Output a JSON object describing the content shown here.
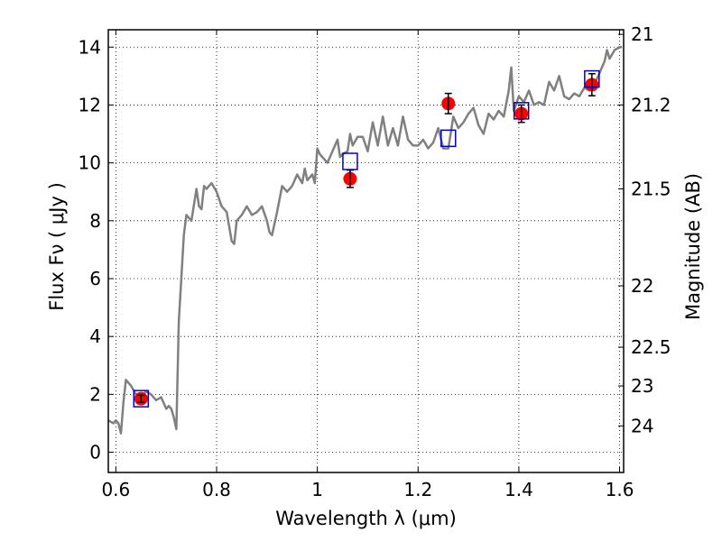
{
  "chart_data": {
    "type": "scatter",
    "xlabel": "Wavelength  λ (μm)",
    "ylabel": "Flux  Fν  ( μJy )",
    "y2label": "Magnitude (AB)",
    "xlim": [
      0.585,
      1.608
    ],
    "ylim": [
      -0.7,
      14.6
    ],
    "grid": true,
    "x_ticks": [
      {
        "value": 0.6,
        "label": "0.6"
      },
      {
        "value": 0.8,
        "label": "0.8"
      },
      {
        "value": 1.0,
        "label": "1"
      },
      {
        "value": 1.2,
        "label": "1.2"
      },
      {
        "value": 1.4,
        "label": "1.4"
      },
      {
        "value": 1.6,
        "label": "1.6"
      }
    ],
    "y_ticks": [
      {
        "value": 0,
        "label": "0"
      },
      {
        "value": 2,
        "label": "2"
      },
      {
        "value": 4,
        "label": "4"
      },
      {
        "value": 6,
        "label": "6"
      },
      {
        "value": 8,
        "label": "8"
      },
      {
        "value": 10,
        "label": "10"
      },
      {
        "value": 12,
        "label": "12"
      },
      {
        "value": 14,
        "label": "14"
      }
    ],
    "y2_ticks": [
      {
        "flux": 14.44,
        "label": "21"
      },
      {
        "flux": 12.0,
        "label": "21.2"
      },
      {
        "flux": 9.1,
        "label": "21.5"
      },
      {
        "flux": 5.75,
        "label": "22"
      },
      {
        "flux": 3.63,
        "label": "22.5"
      },
      {
        "flux": 2.29,
        "label": "23"
      },
      {
        "flux": 0.91,
        "label": "24"
      }
    ],
    "series": [
      {
        "kind": "line",
        "color": "#808080",
        "x": [
          0.585,
          0.595,
          0.6,
          0.605,
          0.61,
          0.615,
          0.62,
          0.63,
          0.64,
          0.65,
          0.66,
          0.67,
          0.68,
          0.69,
          0.7,
          0.705,
          0.71,
          0.715,
          0.72,
          0.725,
          0.73,
          0.735,
          0.74,
          0.75,
          0.76,
          0.765,
          0.77,
          0.775,
          0.78,
          0.79,
          0.8,
          0.81,
          0.82,
          0.83,
          0.835,
          0.84,
          0.85,
          0.86,
          0.87,
          0.88,
          0.89,
          0.9,
          0.905,
          0.91,
          0.92,
          0.93,
          0.94,
          0.95,
          0.96,
          0.97,
          0.975,
          0.98,
          0.99,
          0.995,
          1.0,
          1.005,
          1.01,
          1.02,
          1.03,
          1.04,
          1.045,
          1.05,
          1.06,
          1.065,
          1.07,
          1.08,
          1.09,
          1.1,
          1.11,
          1.12,
          1.13,
          1.14,
          1.15,
          1.16,
          1.17,
          1.18,
          1.19,
          1.2,
          1.21,
          1.22,
          1.23,
          1.24,
          1.25,
          1.26,
          1.27,
          1.28,
          1.29,
          1.3,
          1.31,
          1.32,
          1.33,
          1.34,
          1.35,
          1.36,
          1.37,
          1.38,
          1.385,
          1.39,
          1.4,
          1.41,
          1.42,
          1.43,
          1.44,
          1.45,
          1.46,
          1.47,
          1.48,
          1.49,
          1.5,
          1.51,
          1.52,
          1.53,
          1.54,
          1.55,
          1.56,
          1.57,
          1.575,
          1.58,
          1.59,
          1.6,
          1.605
        ],
        "y": [
          1.1,
          1.0,
          1.1,
          1.0,
          0.65,
          1.7,
          2.5,
          2.3,
          2.0,
          1.9,
          2.1,
          2.0,
          1.8,
          1.9,
          1.5,
          1.6,
          1.5,
          1.2,
          0.8,
          4.5,
          6.0,
          7.5,
          8.2,
          8.0,
          9.1,
          8.5,
          8.4,
          9.2,
          9.1,
          9.3,
          9.0,
          8.5,
          8.3,
          7.3,
          7.2,
          8.0,
          8.2,
          8.5,
          8.2,
          8.3,
          8.5,
          8.0,
          7.6,
          7.5,
          8.3,
          9.2,
          9.0,
          9.2,
          9.6,
          9.3,
          9.8,
          9.4,
          9.6,
          9.3,
          10.5,
          10.3,
          10.2,
          10.0,
          10.4,
          10.8,
          10.2,
          10.3,
          10.4,
          11.0,
          10.6,
          10.9,
          10.9,
          10.4,
          11.4,
          10.6,
          11.6,
          10.6,
          11.2,
          10.6,
          11.6,
          10.8,
          10.6,
          10.6,
          10.8,
          10.5,
          10.7,
          11.2,
          10.5,
          10.5,
          11.6,
          11.2,
          11.4,
          11.7,
          11.9,
          11.3,
          11.0,
          11.7,
          11.5,
          11.8,
          11.6,
          12.5,
          13.3,
          11.8,
          12.3,
          12.1,
          12.5,
          12.0,
          12.1,
          12.0,
          12.8,
          12.5,
          13.0,
          12.3,
          12.2,
          12.4,
          12.3,
          12.6,
          12.5,
          12.7,
          13.1,
          13.5,
          13.9,
          13.6,
          13.9,
          14.0,
          14.0
        ]
      },
      {
        "kind": "markers",
        "marker": "circle",
        "color": "#ff0000",
        "x": [
          0.65,
          1.065,
          1.26,
          1.405,
          1.545
        ],
        "y": [
          1.85,
          9.45,
          12.05,
          11.7,
          12.7
        ],
        "yerr": [
          0.12,
          0.3,
          0.35,
          0.3,
          0.38
        ]
      },
      {
        "kind": "markers",
        "marker": "open-square",
        "color": "#0000cc",
        "x": [
          0.65,
          1.065,
          1.26,
          1.405,
          1.545
        ],
        "y": [
          1.85,
          10.05,
          10.85,
          11.8,
          12.9
        ]
      }
    ]
  }
}
